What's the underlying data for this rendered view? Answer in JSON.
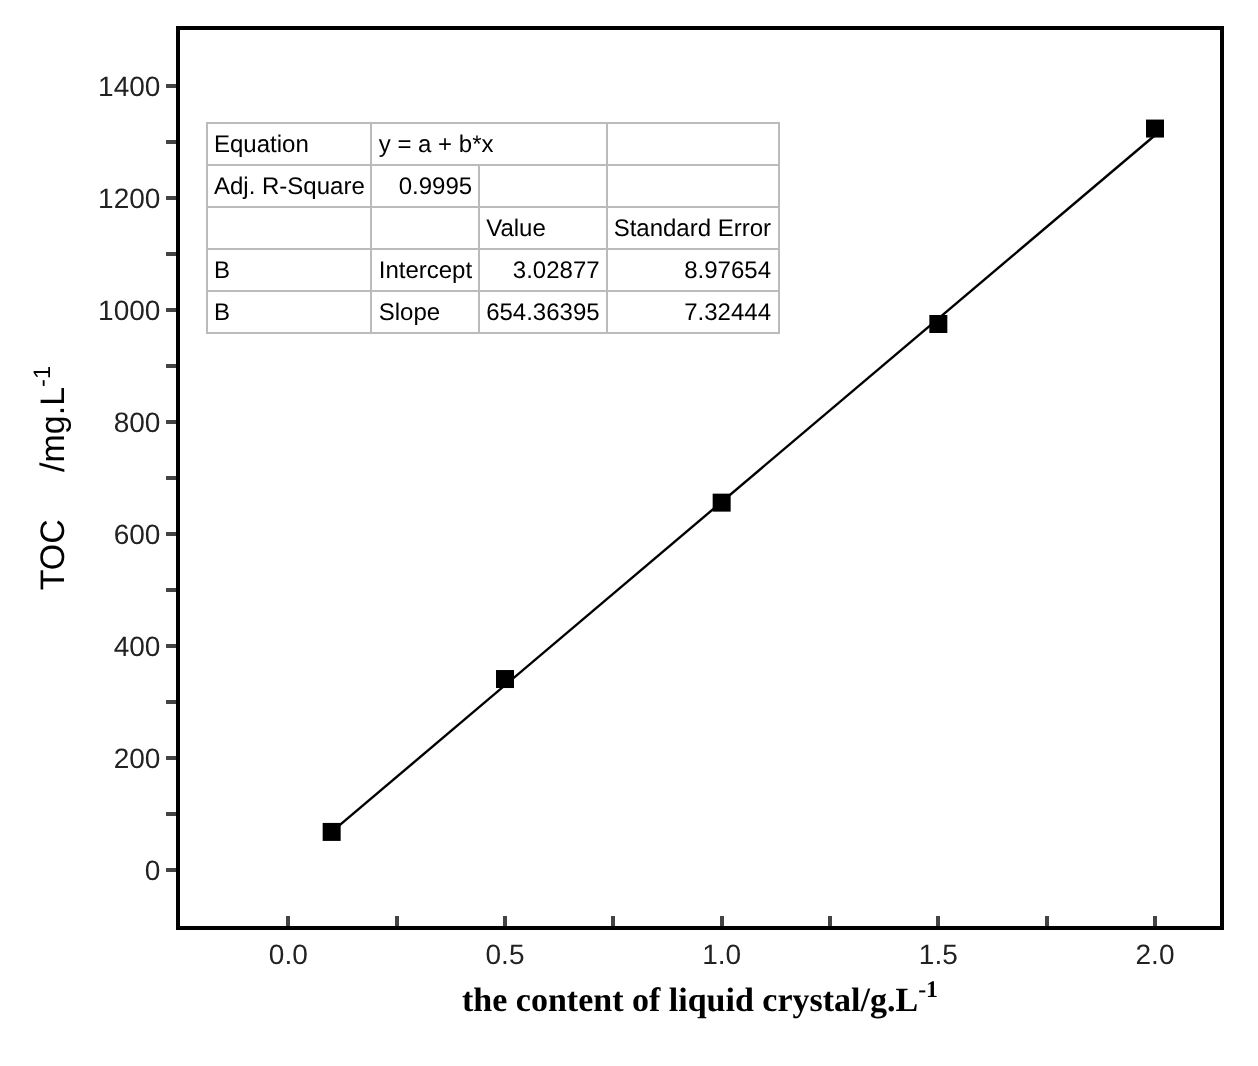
{
  "chart_data": {
    "type": "scatter",
    "xlabel": "the content of liquid crystal/g.L$^{-1}$",
    "ylabel": "TOC     /mg.L$^{-1}$",
    "x": [
      0.1,
      0.5,
      1.0,
      1.5,
      2.0
    ],
    "series": [
      {
        "color": "#000000",
        "marker": "square",
        "values": [
          68,
          341,
          656,
          975,
          1324
        ]
      },
      {
        "type": "line",
        "color": "#000000",
        "line_style": "solid",
        "x": [
          0.1,
          2.0
        ],
        "values": [
          68,
          1312
        ]
      }
    ],
    "xlim": [
      -0.25,
      2.15
    ],
    "xticks": [
      {
        "value": 0,
        "label": "0.0"
      },
      {
        "value": 0.25,
        "label": null
      },
      0.5,
      {
        "value": 0.75,
        "label": null
      },
      {
        "value": 1,
        "label": "1.0"
      },
      {
        "value": 1.25,
        "label": null
      },
      1.5,
      {
        "value": 1.75,
        "label": null
      },
      {
        "value": 2,
        "label": "2.0"
      }
    ],
    "ylim": [
      -100,
      1500
    ],
    "yticks": [
      0,
      {
        "value": 100,
        "label": null
      },
      200,
      {
        "value": 300,
        "label": null
      },
      400,
      {
        "value": 500,
        "label": null
      },
      600,
      {
        "value": 700,
        "label": null
      },
      800,
      {
        "value": 900,
        "label": null
      },
      1000,
      {
        "value": 1100,
        "label": null
      },
      1200,
      {
        "value": 1300,
        "label": null
      },
      1400
    ],
    "grid": false,
    "annotations": [
      "Equation",
      "y = a + b*x",
      "Adj. R-Square",
      "0.9995",
      "Value",
      "Standard Error",
      "B",
      "Intercept",
      "3.02877",
      "8.97654",
      "B",
      "Slope",
      "654.36395",
      "7.32444"
    ]
  }
}
